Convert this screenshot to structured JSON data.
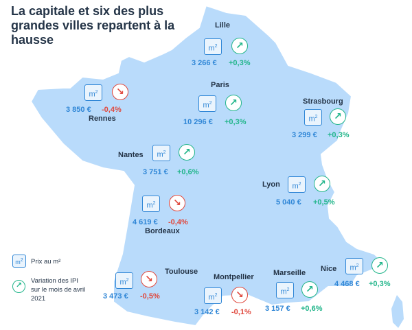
{
  "title": "La capitale et six des plus grandes villes repartent à la hausse",
  "icons": {
    "price_icon": "m2-square-icon",
    "up_icon": "arrow-up-right-circle-icon",
    "down_icon": "arrow-down-right-circle-icon",
    "m2_label": "m",
    "m2_sup": "2"
  },
  "colors": {
    "map_fill": "#b9dbfb",
    "map_stroke": "#ffffff",
    "title": "#243447",
    "price": "#2f86d6",
    "positive": "#21b58a",
    "negative": "#e0483d"
  },
  "cities": [
    {
      "id": "lille",
      "name": "Lille",
      "price": "3 266 €",
      "variation": "+0,3%",
      "trend": "up"
    },
    {
      "id": "paris",
      "name": "Paris",
      "price": "10 296 €",
      "variation": "+0,3%",
      "trend": "up"
    },
    {
      "id": "rennes",
      "name": "Rennes",
      "price": "3 850 €",
      "variation": "-0,4%",
      "trend": "down"
    },
    {
      "id": "strasbourg",
      "name": "Strasbourg",
      "price": "3 299 €",
      "variation": "+0,3%",
      "trend": "up"
    },
    {
      "id": "nantes",
      "name": "Nantes",
      "price": "3 751 €",
      "variation": "+0,6%",
      "trend": "up"
    },
    {
      "id": "lyon",
      "name": "Lyon",
      "price": "5 040 €",
      "variation": "+0,5%",
      "trend": "up"
    },
    {
      "id": "bordeaux",
      "name": "Bordeaux",
      "price": "4 619 €",
      "variation": "-0,4%",
      "trend": "down"
    },
    {
      "id": "toulouse",
      "name": "Toulouse",
      "price": "3 473 €",
      "variation": "-0,5%",
      "trend": "down"
    },
    {
      "id": "montpellier",
      "name": "Montpellier",
      "price": "3 142 €",
      "variation": "-0,1%",
      "trend": "down"
    },
    {
      "id": "marseille",
      "name": "Marseille",
      "price": "3 157 €",
      "variation": "+0,6%",
      "trend": "up"
    },
    {
      "id": "nice",
      "name": "Nice",
      "price": "4 468 €",
      "variation": "+0,3%",
      "trend": "up"
    }
  ],
  "legend": {
    "price_label": "Prix au m²",
    "variation_label": "Variation des IPI sur le mois de avril 2021"
  }
}
